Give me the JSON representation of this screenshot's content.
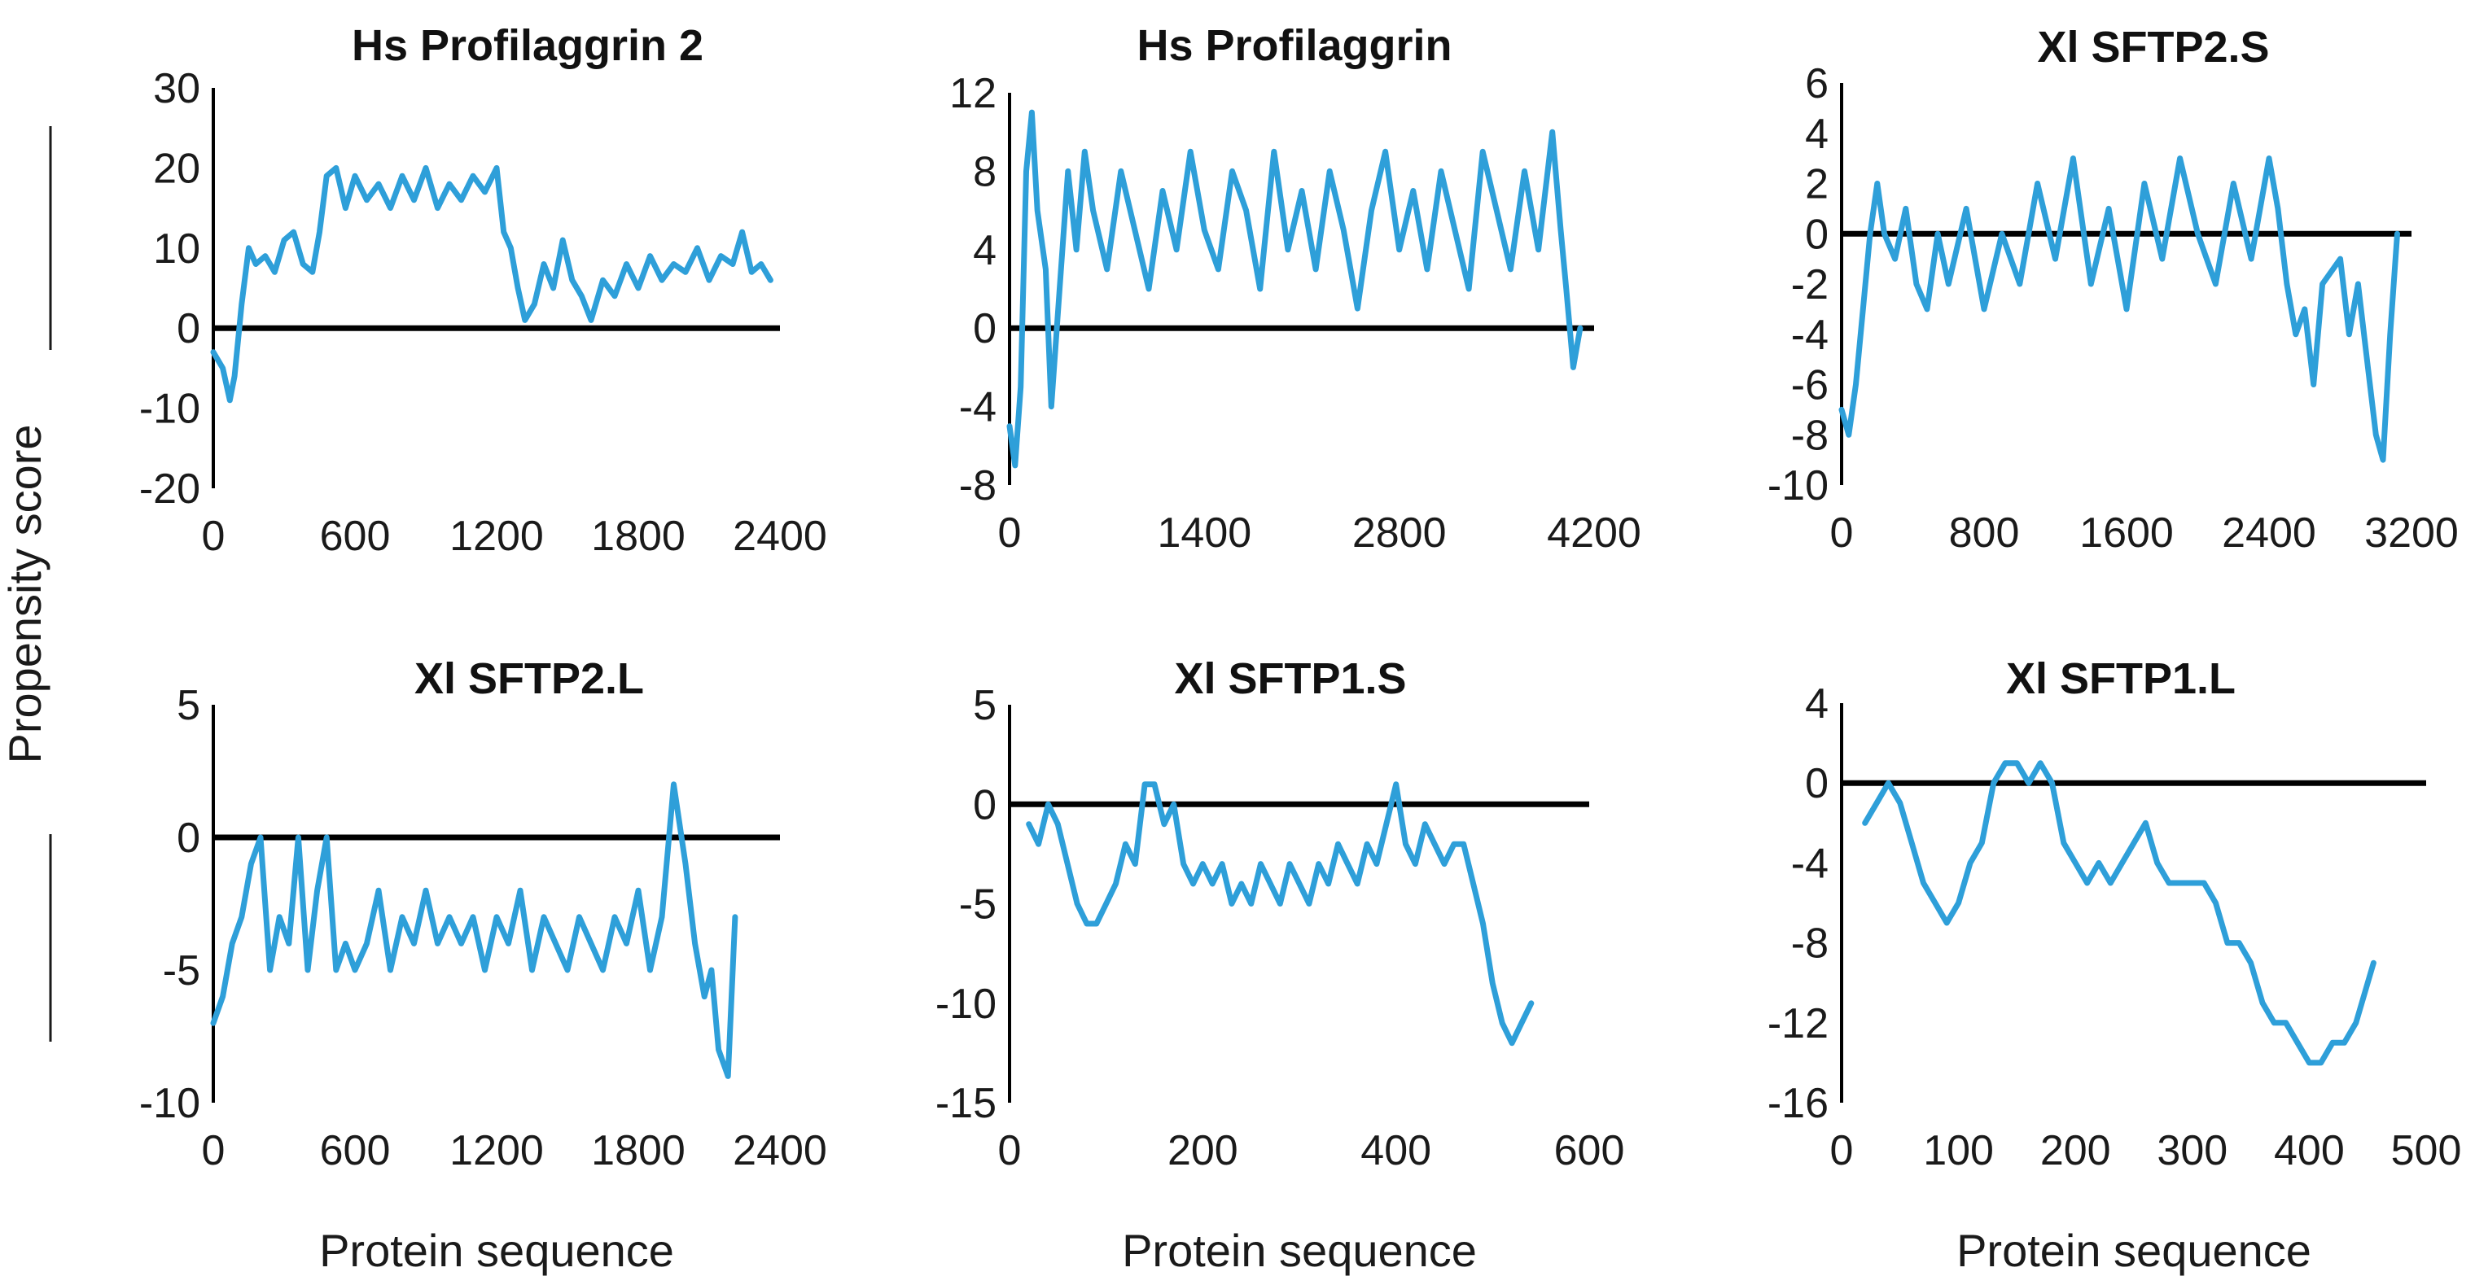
{
  "colors": {
    "series": "#2E9FD9",
    "axis": "#000000",
    "text": "#1a1a1a"
  },
  "figure": {
    "ylabel": "Propensity score",
    "xlabel": "Protein sequence"
  },
  "chart_data": [
    {
      "type": "line",
      "title": "Hs Profilaggrin 2",
      "xlabel": "",
      "ylabel": "Propensity score",
      "xlim": [
        0,
        2400
      ],
      "ylim": [
        -20,
        30
      ],
      "xticks": [
        "0",
        "600",
        "1200",
        "1800",
        "2400"
      ],
      "yticks": [
        "30",
        "20",
        "10",
        "0",
        "-10",
        "-20"
      ],
      "series": [
        {
          "name": "Hs Profilaggrin 2",
          "x": [
            0,
            40,
            70,
            90,
            120,
            150,
            180,
            220,
            260,
            300,
            340,
            380,
            420,
            450,
            480,
            520,
            560,
            600,
            650,
            700,
            750,
            800,
            850,
            900,
            950,
            1000,
            1050,
            1100,
            1150,
            1200,
            1230,
            1260,
            1290,
            1320,
            1360,
            1400,
            1440,
            1480,
            1520,
            1560,
            1600,
            1650,
            1700,
            1750,
            1800,
            1850,
            1900,
            1950,
            2000,
            2050,
            2100,
            2150,
            2200,
            2240,
            2280,
            2320,
            2360
          ],
          "y": [
            -3,
            -5,
            -9,
            -6,
            3,
            10,
            8,
            9,
            7,
            11,
            12,
            8,
            7,
            12,
            19,
            20,
            15,
            19,
            16,
            18,
            15,
            19,
            16,
            20,
            15,
            18,
            16,
            19,
            17,
            20,
            12,
            10,
            5,
            1,
            3,
            8,
            5,
            11,
            6,
            4,
            1,
            6,
            4,
            8,
            5,
            9,
            6,
            8,
            7,
            10,
            6,
            9,
            8,
            12,
            7,
            8,
            6
          ]
        }
      ]
    },
    {
      "type": "line",
      "title": "Hs Profilaggrin",
      "xlabel": "",
      "ylabel": "",
      "xlim": [
        0,
        4200
      ],
      "ylim": [
        -8,
        12
      ],
      "xticks": [
        "0",
        "1400",
        "2800",
        "4200"
      ],
      "yticks": [
        "12",
        "8",
        "4",
        "0",
        "-4",
        "-8"
      ],
      "series": [
        {
          "name": "Hs Profilaggrin",
          "x": [
            0,
            40,
            80,
            120,
            160,
            200,
            260,
            300,
            360,
            420,
            480,
            540,
            600,
            700,
            800,
            900,
            1000,
            1100,
            1200,
            1300,
            1400,
            1500,
            1600,
            1700,
            1800,
            1900,
            2000,
            2100,
            2200,
            2300,
            2400,
            2500,
            2600,
            2700,
            2800,
            2900,
            3000,
            3100,
            3200,
            3300,
            3400,
            3500,
            3600,
            3700,
            3800,
            3900,
            3960,
            4000,
            4050,
            4100
          ],
          "y": [
            -5,
            -7,
            -3,
            8,
            11,
            6,
            3,
            -4,
            2,
            8,
            4,
            9,
            6,
            3,
            8,
            5,
            2,
            7,
            4,
            9,
            5,
            3,
            8,
            6,
            2,
            9,
            4,
            7,
            3,
            8,
            5,
            1,
            6,
            9,
            4,
            7,
            3,
            8,
            5,
            2,
            9,
            6,
            3,
            8,
            4,
            10,
            5,
            2,
            -2,
            0
          ]
        }
      ]
    },
    {
      "type": "line",
      "title": "Xl SFTP2.S",
      "xlabel": "",
      "ylabel": "",
      "xlim": [
        0,
        3200
      ],
      "ylim": [
        -10,
        6
      ],
      "xticks": [
        "0",
        "800",
        "1600",
        "2400",
        "3200"
      ],
      "yticks": [
        "6",
        "4",
        "2",
        "0",
        "-2",
        "-4",
        "-6",
        "-8",
        "-10"
      ],
      "series": [
        {
          "name": "Xl SFTP2.S",
          "x": [
            0,
            40,
            80,
            120,
            160,
            200,
            240,
            300,
            360,
            420,
            480,
            540,
            600,
            700,
            800,
            900,
            1000,
            1100,
            1200,
            1300,
            1400,
            1500,
            1600,
            1700,
            1800,
            1900,
            2000,
            2100,
            2200,
            2300,
            2400,
            2450,
            2500,
            2550,
            2600,
            2650,
            2700,
            2800,
            2850,
            2900,
            2950,
            3000,
            3040,
            3080,
            3120
          ],
          "y": [
            -7,
            -8,
            -6,
            -3,
            0,
            2,
            0,
            -1,
            1,
            -2,
            -3,
            0,
            -2,
            1,
            -3,
            0,
            -2,
            2,
            -1,
            3,
            -2,
            1,
            -3,
            2,
            -1,
            3,
            0,
            -2,
            2,
            -1,
            3,
            1,
            -2,
            -4,
            -3,
            -6,
            -2,
            -1,
            -4,
            -2,
            -5,
            -8,
            -9,
            -4,
            0
          ]
        }
      ]
    },
    {
      "type": "line",
      "title": "Xl SFTP2.L",
      "xlabel": "Protein sequence",
      "ylabel": "",
      "xlim": [
        0,
        2400
      ],
      "ylim": [
        -10,
        5
      ],
      "xticks": [
        "0",
        "600",
        "1200",
        "1800",
        "2400"
      ],
      "yticks": [
        "5",
        "0",
        "-5",
        "-10"
      ],
      "series": [
        {
          "name": "Xl SFTP2.L",
          "x": [
            0,
            40,
            80,
            120,
            160,
            200,
            240,
            280,
            320,
            360,
            400,
            440,
            480,
            520,
            560,
            600,
            650,
            700,
            750,
            800,
            850,
            900,
            950,
            1000,
            1050,
            1100,
            1150,
            1200,
            1250,
            1300,
            1350,
            1400,
            1450,
            1500,
            1550,
            1600,
            1650,
            1700,
            1750,
            1800,
            1850,
            1900,
            1950,
            2000,
            2040,
            2080,
            2110,
            2140,
            2180,
            2210
          ],
          "y": [
            -7,
            -6,
            -4,
            -3,
            -1,
            0,
            -5,
            -3,
            -4,
            0,
            -5,
            -2,
            0,
            -5,
            -4,
            -5,
            -4,
            -2,
            -5,
            -3,
            -4,
            -2,
            -4,
            -3,
            -4,
            -3,
            -5,
            -3,
            -4,
            -2,
            -5,
            -3,
            -4,
            -5,
            -3,
            -4,
            -5,
            -3,
            -4,
            -2,
            -5,
            -3,
            2,
            -1,
            -4,
            -6,
            -5,
            -8,
            -9,
            -3
          ]
        }
      ]
    },
    {
      "type": "line",
      "title": "Xl SFTP1.S",
      "xlabel": "Protein sequence",
      "ylabel": "",
      "xlim": [
        0,
        600
      ],
      "ylim": [
        -15,
        5
      ],
      "xticks": [
        "0",
        "200",
        "400",
        "600"
      ],
      "yticks": [
        "5",
        "0",
        "-5",
        "-10",
        "-15"
      ],
      "series": [
        {
          "name": "Xl SFTP1.S",
          "x": [
            20,
            30,
            40,
            50,
            60,
            70,
            80,
            90,
            100,
            110,
            120,
            130,
            140,
            150,
            160,
            170,
            180,
            190,
            200,
            210,
            220,
            230,
            240,
            250,
            260,
            270,
            280,
            290,
            300,
            310,
            320,
            330,
            340,
            350,
            360,
            370,
            380,
            390,
            400,
            410,
            420,
            430,
            440,
            450,
            460,
            470,
            480,
            490,
            500,
            510,
            520,
            530,
            540
          ],
          "y": [
            -1,
            -2,
            0,
            -1,
            -3,
            -5,
            -6,
            -6,
            -5,
            -4,
            -2,
            -3,
            1,
            1,
            -1,
            0,
            -3,
            -4,
            -3,
            -4,
            -3,
            -5,
            -4,
            -5,
            -3,
            -4,
            -5,
            -3,
            -4,
            -5,
            -3,
            -4,
            -2,
            -3,
            -4,
            -2,
            -3,
            -1,
            1,
            -2,
            -3,
            -1,
            -2,
            -3,
            -2,
            -2,
            -4,
            -6,
            -9,
            -11,
            -12,
            -11,
            -10
          ]
        }
      ]
    },
    {
      "type": "line",
      "title": "Xl SFTP1.L",
      "xlabel": "Protein sequence",
      "ylabel": "",
      "xlim": [
        0,
        500
      ],
      "ylim": [
        -16,
        4
      ],
      "xticks": [
        "0",
        "100",
        "200",
        "300",
        "400",
        "500"
      ],
      "yticks": [
        "4",
        "0",
        "-4",
        "-8",
        "-12",
        "-16"
      ],
      "series": [
        {
          "name": "Xl SFTP1.L",
          "x": [
            20,
            30,
            40,
            50,
            60,
            70,
            80,
            90,
            100,
            110,
            120,
            130,
            140,
            150,
            160,
            170,
            180,
            190,
            200,
            210,
            220,
            230,
            240,
            250,
            260,
            270,
            280,
            290,
            300,
            310,
            320,
            330,
            340,
            350,
            360,
            370,
            380,
            390,
            400,
            410,
            420,
            430,
            440,
            450,
            455
          ],
          "y": [
            -2,
            -1,
            0,
            -1,
            -3,
            -5,
            -6,
            -7,
            -6,
            -4,
            -3,
            0,
            1,
            1,
            0,
            1,
            0,
            -3,
            -4,
            -5,
            -4,
            -5,
            -4,
            -3,
            -2,
            -4,
            -5,
            -5,
            -5,
            -5,
            -6,
            -8,
            -8,
            -9,
            -11,
            -12,
            -12,
            -13,
            -14,
            -14,
            -13,
            -13,
            -12,
            -10,
            -9
          ]
        }
      ]
    }
  ]
}
